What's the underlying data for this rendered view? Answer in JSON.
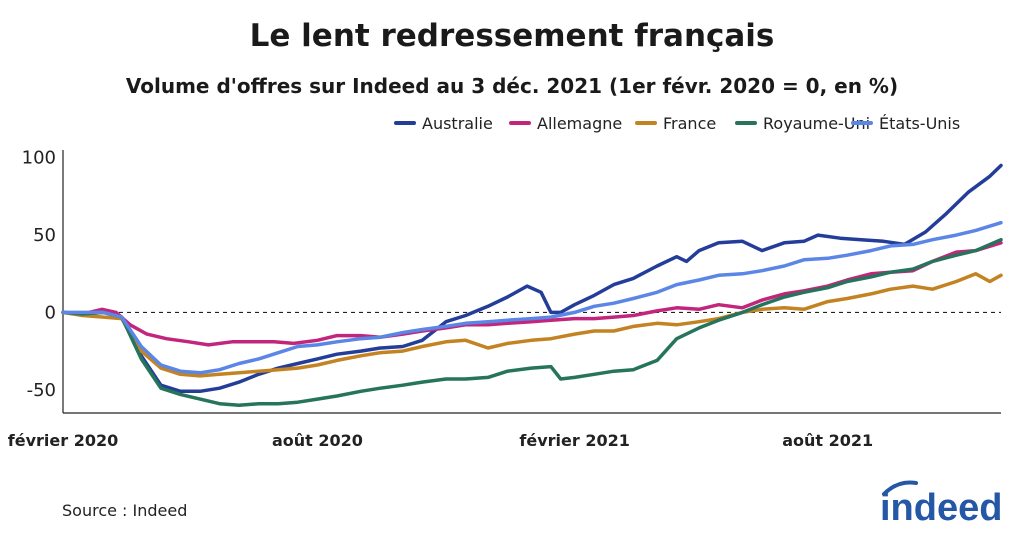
{
  "chart_data": {
    "type": "line",
    "title": "Le lent redressement français",
    "subtitle": "Volume d'offres sur Indeed au 3 déc. 2021 (1er févr. 2020 = 0, en %)",
    "xlabel": "",
    "ylabel": "",
    "x_range": [
      "2020-02-01",
      "2021-12-03"
    ],
    "ylim": [
      -65,
      105
    ],
    "y_ticks": [
      100,
      50,
      0,
      -50
    ],
    "y_tick_labels": [
      "100",
      "50",
      "0",
      "-50"
    ],
    "x_ticks": [
      "2020-02-01",
      "2020-08-01",
      "2021-02-01",
      "2021-08-01"
    ],
    "x_tick_labels": [
      "février 2020",
      "août 2020",
      "février 2021",
      "août 2021"
    ],
    "reference_line": 0,
    "grid": false,
    "legend_position": "top-right",
    "series": [
      {
        "name": "Australie",
        "color": "#233d99",
        "points": [
          [
            "2020-02-01",
            0
          ],
          [
            "2020-02-15",
            -1
          ],
          [
            "2020-03-01",
            0
          ],
          [
            "2020-03-14",
            -3
          ],
          [
            "2020-03-28",
            -28
          ],
          [
            "2020-04-11",
            -47
          ],
          [
            "2020-04-25",
            -51
          ],
          [
            "2020-05-09",
            -51
          ],
          [
            "2020-05-23",
            -49
          ],
          [
            "2020-06-06",
            -45
          ],
          [
            "2020-06-20",
            -40
          ],
          [
            "2020-07-04",
            -36
          ],
          [
            "2020-07-18",
            -33
          ],
          [
            "2020-08-01",
            -30
          ],
          [
            "2020-08-15",
            -27
          ],
          [
            "2020-09-01",
            -25
          ],
          [
            "2020-09-15",
            -23
          ],
          [
            "2020-10-01",
            -22
          ],
          [
            "2020-10-15",
            -18
          ],
          [
            "2020-11-01",
            -6
          ],
          [
            "2020-11-15",
            -2
          ],
          [
            "2020-12-01",
            4
          ],
          [
            "2020-12-15",
            10
          ],
          [
            "2020-12-29",
            17
          ],
          [
            "2021-01-08",
            13
          ],
          [
            "2021-01-15",
            0
          ],
          [
            "2021-01-22",
            0
          ],
          [
            "2021-02-01",
            5
          ],
          [
            "2021-02-15",
            11
          ],
          [
            "2021-03-01",
            18
          ],
          [
            "2021-03-15",
            22
          ],
          [
            "2021-04-01",
            30
          ],
          [
            "2021-04-15",
            36
          ],
          [
            "2021-04-22",
            33
          ],
          [
            "2021-05-01",
            40
          ],
          [
            "2021-05-15",
            45
          ],
          [
            "2021-06-01",
            46
          ],
          [
            "2021-06-15",
            40
          ],
          [
            "2021-07-01",
            45
          ],
          [
            "2021-07-15",
            46
          ],
          [
            "2021-07-25",
            50
          ],
          [
            "2021-08-10",
            48
          ],
          [
            "2021-08-25",
            47
          ],
          [
            "2021-09-10",
            46
          ],
          [
            "2021-09-25",
            44
          ],
          [
            "2021-10-10",
            52
          ],
          [
            "2021-10-25",
            64
          ],
          [
            "2021-11-10",
            78
          ],
          [
            "2021-11-25",
            88
          ],
          [
            "2021-12-03",
            95
          ]
        ]
      },
      {
        "name": "Allemagne",
        "color": "#c2267c",
        "points": [
          [
            "2020-02-01",
            0
          ],
          [
            "2020-02-15",
            -1
          ],
          [
            "2020-02-29",
            2
          ],
          [
            "2020-03-10",
            0
          ],
          [
            "2020-03-20",
            -8
          ],
          [
            "2020-04-01",
            -14
          ],
          [
            "2020-04-15",
            -17
          ],
          [
            "2020-05-01",
            -19
          ],
          [
            "2020-05-15",
            -21
          ],
          [
            "2020-06-01",
            -19
          ],
          [
            "2020-06-15",
            -19
          ],
          [
            "2020-07-01",
            -19
          ],
          [
            "2020-07-15",
            -20
          ],
          [
            "2020-08-01",
            -18
          ],
          [
            "2020-08-15",
            -15
          ],
          [
            "2020-09-01",
            -15
          ],
          [
            "2020-09-15",
            -16
          ],
          [
            "2020-10-01",
            -14
          ],
          [
            "2020-10-15",
            -12
          ],
          [
            "2020-11-01",
            -10
          ],
          [
            "2020-11-15",
            -8
          ],
          [
            "2020-12-01",
            -8
          ],
          [
            "2020-12-15",
            -7
          ],
          [
            "2021-01-01",
            -6
          ],
          [
            "2021-01-15",
            -5
          ],
          [
            "2021-02-01",
            -4
          ],
          [
            "2021-02-15",
            -4
          ],
          [
            "2021-03-01",
            -3
          ],
          [
            "2021-03-15",
            -2
          ],
          [
            "2021-04-01",
            1
          ],
          [
            "2021-04-15",
            3
          ],
          [
            "2021-05-01",
            2
          ],
          [
            "2021-05-15",
            5
          ],
          [
            "2021-06-01",
            3
          ],
          [
            "2021-06-15",
            8
          ],
          [
            "2021-07-01",
            12
          ],
          [
            "2021-07-15",
            14
          ],
          [
            "2021-08-01",
            17
          ],
          [
            "2021-08-15",
            21
          ],
          [
            "2021-09-01",
            25
          ],
          [
            "2021-09-15",
            26
          ],
          [
            "2021-10-01",
            27
          ],
          [
            "2021-10-15",
            33
          ],
          [
            "2021-11-01",
            39
          ],
          [
            "2021-11-15",
            40
          ],
          [
            "2021-12-03",
            45
          ]
        ]
      },
      {
        "name": "France",
        "color": "#c48322",
        "points": [
          [
            "2020-02-01",
            0
          ],
          [
            "2020-02-15",
            -2
          ],
          [
            "2020-03-01",
            -3
          ],
          [
            "2020-03-14",
            -4
          ],
          [
            "2020-03-28",
            -25
          ],
          [
            "2020-04-11",
            -36
          ],
          [
            "2020-04-25",
            -40
          ],
          [
            "2020-05-09",
            -41
          ],
          [
            "2020-05-23",
            -40
          ],
          [
            "2020-06-06",
            -39
          ],
          [
            "2020-06-20",
            -38
          ],
          [
            "2020-07-04",
            -37
          ],
          [
            "2020-07-18",
            -36
          ],
          [
            "2020-08-01",
            -34
          ],
          [
            "2020-08-15",
            -31
          ],
          [
            "2020-09-01",
            -28
          ],
          [
            "2020-09-15",
            -26
          ],
          [
            "2020-10-01",
            -25
          ],
          [
            "2020-10-15",
            -22
          ],
          [
            "2020-11-01",
            -19
          ],
          [
            "2020-11-15",
            -18
          ],
          [
            "2020-12-01",
            -23
          ],
          [
            "2020-12-15",
            -20
          ],
          [
            "2021-01-01",
            -18
          ],
          [
            "2021-01-15",
            -17
          ],
          [
            "2021-02-01",
            -14
          ],
          [
            "2021-02-15",
            -12
          ],
          [
            "2021-03-01",
            -12
          ],
          [
            "2021-03-15",
            -9
          ],
          [
            "2021-04-01",
            -7
          ],
          [
            "2021-04-15",
            -8
          ],
          [
            "2021-05-01",
            -6
          ],
          [
            "2021-05-15",
            -4
          ],
          [
            "2021-06-01",
            0
          ],
          [
            "2021-06-15",
            2
          ],
          [
            "2021-07-01",
            3
          ],
          [
            "2021-07-15",
            2
          ],
          [
            "2021-08-01",
            7
          ],
          [
            "2021-08-15",
            9
          ],
          [
            "2021-09-01",
            12
          ],
          [
            "2021-09-15",
            15
          ],
          [
            "2021-10-01",
            17
          ],
          [
            "2021-10-15",
            15
          ],
          [
            "2021-11-01",
            20
          ],
          [
            "2021-11-15",
            25
          ],
          [
            "2021-11-25",
            20
          ],
          [
            "2021-12-03",
            24
          ]
        ]
      },
      {
        "name": "Royaume-Uni",
        "color": "#26745c",
        "points": [
          [
            "2020-02-01",
            0
          ],
          [
            "2020-02-15",
            -1
          ],
          [
            "2020-03-01",
            0
          ],
          [
            "2020-03-14",
            -3
          ],
          [
            "2020-03-28",
            -30
          ],
          [
            "2020-04-11",
            -49
          ],
          [
            "2020-04-25",
            -53
          ],
          [
            "2020-05-09",
            -56
          ],
          [
            "2020-05-23",
            -59
          ],
          [
            "2020-06-06",
            -60
          ],
          [
            "2020-06-20",
            -59
          ],
          [
            "2020-07-04",
            -59
          ],
          [
            "2020-07-18",
            -58
          ],
          [
            "2020-08-01",
            -56
          ],
          [
            "2020-08-15",
            -54
          ],
          [
            "2020-09-01",
            -51
          ],
          [
            "2020-09-15",
            -49
          ],
          [
            "2020-10-01",
            -47
          ],
          [
            "2020-10-15",
            -45
          ],
          [
            "2020-11-01",
            -43
          ],
          [
            "2020-11-15",
            -43
          ],
          [
            "2020-12-01",
            -42
          ],
          [
            "2020-12-15",
            -38
          ],
          [
            "2021-01-01",
            -36
          ],
          [
            "2021-01-15",
            -35
          ],
          [
            "2021-01-22",
            -43
          ],
          [
            "2021-02-01",
            -42
          ],
          [
            "2021-02-15",
            -40
          ],
          [
            "2021-03-01",
            -38
          ],
          [
            "2021-03-15",
            -37
          ],
          [
            "2021-04-01",
            -31
          ],
          [
            "2021-04-15",
            -17
          ],
          [
            "2021-05-01",
            -10
          ],
          [
            "2021-05-15",
            -5
          ],
          [
            "2021-06-01",
            0
          ],
          [
            "2021-06-15",
            5
          ],
          [
            "2021-07-01",
            10
          ],
          [
            "2021-07-15",
            13
          ],
          [
            "2021-08-01",
            16
          ],
          [
            "2021-08-15",
            20
          ],
          [
            "2021-09-01",
            23
          ],
          [
            "2021-09-15",
            26
          ],
          [
            "2021-10-01",
            28
          ],
          [
            "2021-10-15",
            33
          ],
          [
            "2021-11-01",
            37
          ],
          [
            "2021-11-15",
            40
          ],
          [
            "2021-12-03",
            47
          ]
        ]
      },
      {
        "name": "États-Unis",
        "color": "#5b86e6",
        "points": [
          [
            "2020-02-01",
            0
          ],
          [
            "2020-02-15",
            0
          ],
          [
            "2020-03-01",
            0
          ],
          [
            "2020-03-14",
            -3
          ],
          [
            "2020-03-28",
            -22
          ],
          [
            "2020-04-11",
            -34
          ],
          [
            "2020-04-25",
            -38
          ],
          [
            "2020-05-09",
            -39
          ],
          [
            "2020-05-23",
            -37
          ],
          [
            "2020-06-06",
            -33
          ],
          [
            "2020-06-20",
            -30
          ],
          [
            "2020-07-04",
            -26
          ],
          [
            "2020-07-18",
            -22
          ],
          [
            "2020-08-01",
            -21
          ],
          [
            "2020-08-15",
            -19
          ],
          [
            "2020-09-01",
            -17
          ],
          [
            "2020-09-15",
            -16
          ],
          [
            "2020-10-01",
            -13
          ],
          [
            "2020-10-15",
            -11
          ],
          [
            "2020-11-01",
            -9
          ],
          [
            "2020-11-15",
            -7
          ],
          [
            "2020-12-01",
            -6
          ],
          [
            "2020-12-15",
            -5
          ],
          [
            "2021-01-01",
            -4
          ],
          [
            "2021-01-15",
            -3
          ],
          [
            "2021-02-01",
            0
          ],
          [
            "2021-02-15",
            4
          ],
          [
            "2021-03-01",
            6
          ],
          [
            "2021-03-15",
            9
          ],
          [
            "2021-04-01",
            13
          ],
          [
            "2021-04-15",
            18
          ],
          [
            "2021-05-01",
            21
          ],
          [
            "2021-05-15",
            24
          ],
          [
            "2021-06-01",
            25
          ],
          [
            "2021-06-15",
            27
          ],
          [
            "2021-07-01",
            30
          ],
          [
            "2021-07-15",
            34
          ],
          [
            "2021-08-01",
            35
          ],
          [
            "2021-08-15",
            37
          ],
          [
            "2021-09-01",
            40
          ],
          [
            "2021-09-15",
            43
          ],
          [
            "2021-10-01",
            44
          ],
          [
            "2021-10-15",
            47
          ],
          [
            "2021-11-01",
            50
          ],
          [
            "2021-11-15",
            53
          ],
          [
            "2021-12-03",
            58
          ]
        ]
      }
    ]
  },
  "source": "Source : Indeed",
  "logo": {
    "text": "indeed",
    "color": "#2557a7",
    "icon": "indeed-logo-icon"
  }
}
